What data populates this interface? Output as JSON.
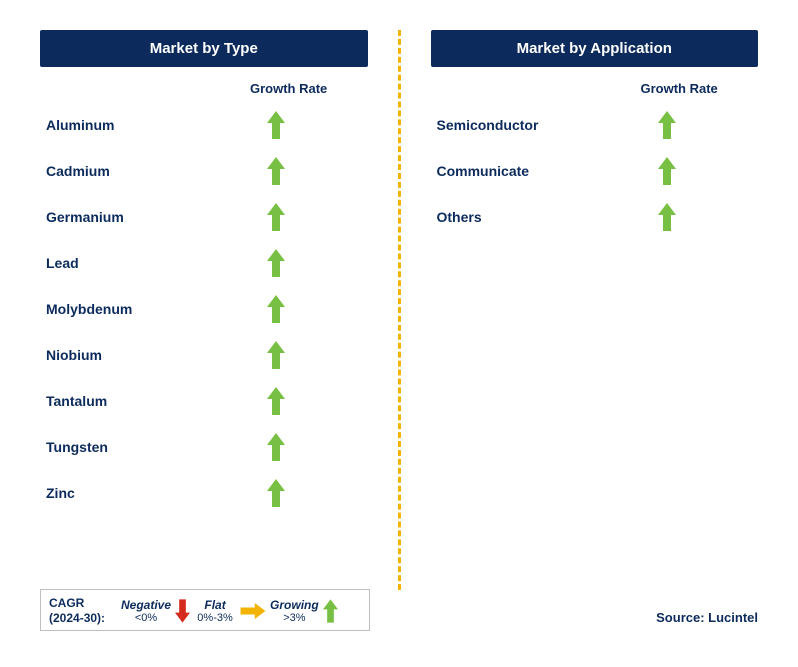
{
  "colors": {
    "header_bg": "#0c2b5c",
    "header_text": "#ffffff",
    "label_text": "#0c2b5c",
    "divider": "#f2b400",
    "arrow_up": "#78c043",
    "arrow_down": "#d52b1e",
    "arrow_flat": "#f2b400",
    "legend_border": "#bfbfbf",
    "background": "#ffffff"
  },
  "left": {
    "header": "Market by Type",
    "growth_label": "Growth Rate",
    "items": [
      {
        "label": "Aluminum",
        "growth": "up"
      },
      {
        "label": "Cadmium",
        "growth": "up"
      },
      {
        "label": "Germanium",
        "growth": "up"
      },
      {
        "label": "Lead",
        "growth": "up"
      },
      {
        "label": "Molybdenum",
        "growth": "up"
      },
      {
        "label": "Niobium",
        "growth": "up"
      },
      {
        "label": "Tantalum",
        "growth": "up"
      },
      {
        "label": "Tungsten",
        "growth": "up"
      },
      {
        "label": "Zinc",
        "growth": "up"
      }
    ]
  },
  "right": {
    "header": "Market by Application",
    "growth_label": "Growth Rate",
    "items": [
      {
        "label": "Semiconductor",
        "growth": "up"
      },
      {
        "label": "Communicate",
        "growth": "up"
      },
      {
        "label": "Others",
        "growth": "up"
      }
    ]
  },
  "legend": {
    "title_line1": "CAGR",
    "title_line2": "(2024-30):",
    "negative_label": "Negative",
    "negative_range": "<0%",
    "flat_label": "Flat",
    "flat_range": "0%-3%",
    "growing_label": "Growing",
    "growing_range": ">3%"
  },
  "source": "Source: Lucintel",
  "arrow_icon_size": {
    "up_width": 18,
    "up_height": 28
  }
}
